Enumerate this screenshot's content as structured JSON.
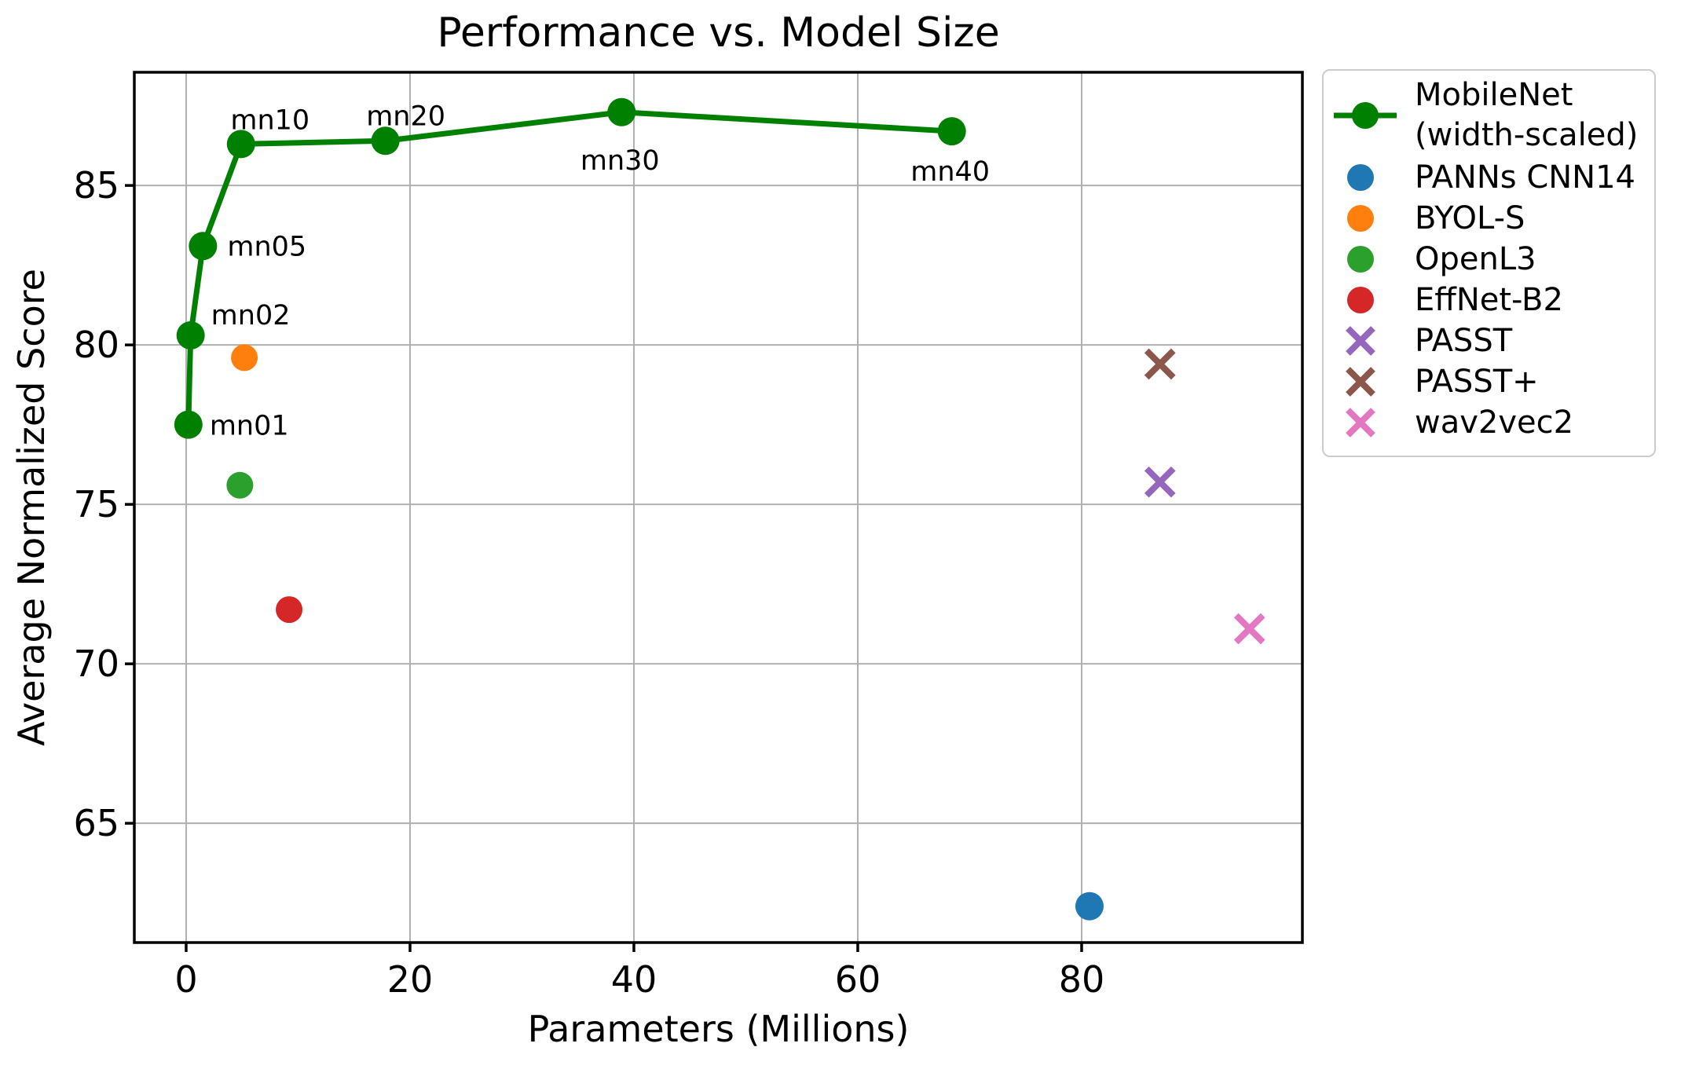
{
  "figure": {
    "background": "#ffffff"
  },
  "chart_data": {
    "type": "line+scatter",
    "title": "Performance vs. Model Size",
    "xlabel": "Parameters (Millions)",
    "ylabel": "Average Normalized Score",
    "xlim": [
      -4.63,
      99.72
    ],
    "ylim": [
      61.26,
      88.55
    ],
    "xticks": [
      0,
      20,
      40,
      60,
      80
    ],
    "yticks": [
      65,
      70,
      75,
      80,
      85
    ],
    "grid": true,
    "grid_color": "#b0b0b0",
    "axis_color": "#000000",
    "legend_position": "outside-upper-right",
    "series": [
      {
        "name": "MobileNet (width-scaled)",
        "legend_lines": [
          "MobileNet",
          "(width-scaled)"
        ],
        "type": "line",
        "marker": "circle",
        "color": "#008000",
        "line_width": 7,
        "marker_size": 18,
        "points": [
          {
            "x": 0.2,
            "y": 77.5,
            "label": "mn01",
            "label_dx": 27,
            "label_dy": 13,
            "label_anchor": "start"
          },
          {
            "x": 0.4,
            "y": 80.3,
            "label": "mn02",
            "label_dx": 26,
            "label_dy": -14,
            "label_anchor": "start"
          },
          {
            "x": 1.5,
            "y": 83.1,
            "label": "mn05",
            "label_dx": 31,
            "label_dy": 12,
            "label_anchor": "start"
          },
          {
            "x": 4.9,
            "y": 86.3,
            "label": "mn10",
            "label_dx": 37,
            "label_dy": -19,
            "label_anchor": "middle"
          },
          {
            "x": 17.8,
            "y": 86.4,
            "label": "mn20",
            "label_dx": 26,
            "label_dy": -20,
            "label_anchor": "middle"
          },
          {
            "x": 38.9,
            "y": 87.3,
            "label": "mn30",
            "label_dx": -2,
            "label_dy": 73,
            "label_anchor": "middle"
          },
          {
            "x": 68.4,
            "y": 86.7,
            "label": "mn40",
            "label_dx": -2,
            "label_dy": 63,
            "label_anchor": "middle"
          }
        ]
      },
      {
        "name": "PANNs CNN14",
        "type": "scatter",
        "marker": "circle",
        "color": "#1f77b4",
        "marker_size": 18,
        "points": [
          {
            "x": 80.7,
            "y": 62.4
          }
        ]
      },
      {
        "name": "BYOL-S",
        "type": "scatter",
        "marker": "circle",
        "color": "#ff7f0e",
        "marker_size": 17,
        "points": [
          {
            "x": 5.2,
            "y": 79.6
          }
        ]
      },
      {
        "name": "OpenL3",
        "type": "scatter",
        "marker": "circle",
        "color": "#2ca02c",
        "marker_size": 17,
        "points": [
          {
            "x": 4.8,
            "y": 75.6
          }
        ]
      },
      {
        "name": "EffNet-B2",
        "type": "scatter",
        "marker": "circle",
        "color": "#d62728",
        "marker_size": 17,
        "points": [
          {
            "x": 9.2,
            "y": 71.7
          }
        ]
      },
      {
        "name": "PASST",
        "type": "scatter",
        "marker": "x",
        "color": "#9467bd",
        "marker_size": 18,
        "points": [
          {
            "x": 87.0,
            "y": 75.7
          }
        ]
      },
      {
        "name": "PASST+",
        "type": "scatter",
        "marker": "x",
        "color": "#8c564b",
        "marker_size": 18,
        "points": [
          {
            "x": 87.0,
            "y": 79.4
          }
        ]
      },
      {
        "name": "wav2vec2",
        "type": "scatter",
        "marker": "x",
        "color": "#e377c2",
        "marker_size": 18,
        "points": [
          {
            "x": 95.0,
            "y": 71.1
          }
        ]
      }
    ]
  }
}
